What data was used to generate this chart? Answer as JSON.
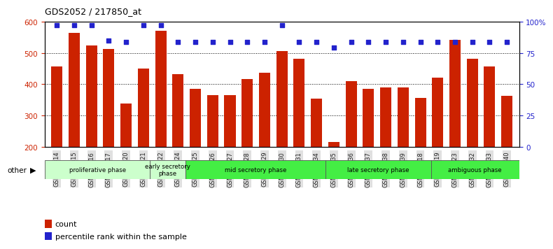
{
  "title": "GDS2052 / 217850_at",
  "samples": [
    "GSM109814",
    "GSM109815",
    "GSM109816",
    "GSM109817",
    "GSM109820",
    "GSM109821",
    "GSM109822",
    "GSM109824",
    "GSM109825",
    "GSM109826",
    "GSM109827",
    "GSM109828",
    "GSM109829",
    "GSM109830",
    "GSM109831",
    "GSM109834",
    "GSM109835",
    "GSM109836",
    "GSM109837",
    "GSM109838",
    "GSM109839",
    "GSM109818",
    "GSM109819",
    "GSM109823",
    "GSM109832",
    "GSM109833",
    "GSM109840"
  ],
  "counts": [
    457,
    565,
    524,
    512,
    339,
    449,
    571,
    432,
    385,
    365,
    366,
    417,
    437,
    507,
    481,
    353,
    215,
    410,
    385,
    390,
    390,
    355,
    420,
    542,
    482,
    457,
    363
  ],
  "percentile_vals": [
    97,
    97,
    97,
    85,
    84,
    97,
    97,
    84,
    84,
    84,
    84,
    84,
    84,
    97,
    84,
    84,
    79,
    84,
    84,
    84,
    84,
    84,
    84,
    84,
    84,
    84,
    84
  ],
  "bar_color": "#cc2200",
  "dot_color": "#2222cc",
  "ymin": 200,
  "ymax": 600,
  "yticks": [
    200,
    300,
    400,
    500,
    600
  ],
  "right_yticks": [
    0,
    25,
    50,
    75,
    100
  ],
  "phases": [
    {
      "label": "proliferative phase",
      "start": 0,
      "end": 6,
      "color": "#ccffcc"
    },
    {
      "label": "early secretory\nphase",
      "start": 6,
      "end": 8,
      "color": "#ccffcc"
    },
    {
      "label": "mid secretory phase",
      "start": 8,
      "end": 16,
      "color": "#44ee44"
    },
    {
      "label": "late secretory phase",
      "start": 16,
      "end": 22,
      "color": "#44ee44"
    },
    {
      "label": "ambiguous phase",
      "start": 22,
      "end": 27,
      "color": "#44ee44"
    }
  ],
  "legend_count_label": "count",
  "legend_pct_label": "percentile rank within the sample",
  "other_label": "other"
}
